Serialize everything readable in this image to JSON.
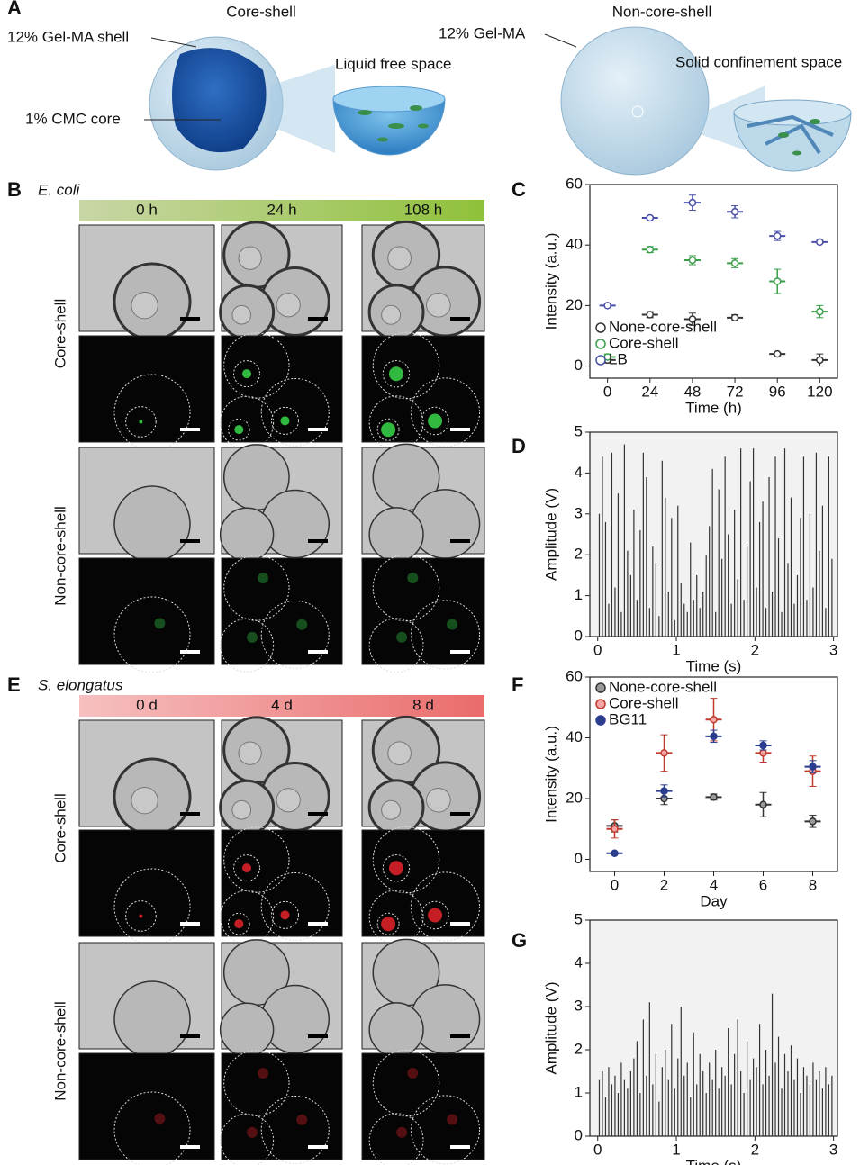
{
  "panel_labels": [
    "A",
    "B",
    "C",
    "D",
    "E",
    "F",
    "G"
  ],
  "panel_a": {
    "core_shell_title": "Core-shell",
    "shell": "12% Gel-MA shell",
    "core": "1% CMC core",
    "liquid": "Liquid free space",
    "non_core_shell_title": "Non-core-shell",
    "gelma": "12% Gel-MA",
    "solid": "Solid confinement space"
  },
  "panel_b": {
    "organism": "E. coli",
    "times": [
      "0 h",
      "24 h",
      "108 h"
    ],
    "rows": [
      "Core-shell",
      "Non-core-shell"
    ]
  },
  "panel_e": {
    "organism": "S. elongatus",
    "times": [
      "0 d",
      "4 d",
      "8 d"
    ],
    "rows": [
      "Core-shell",
      "Non-core-shell"
    ]
  },
  "chart_data": [
    {
      "type": "errorbar",
      "xlabel": "Time (h)",
      "ylabel": "Intensity (a.u.)",
      "x": [
        0,
        24,
        48,
        72,
        96,
        120
      ],
      "xlim": [
        -10,
        130
      ],
      "xticks": [
        0,
        24,
        48,
        72,
        96,
        120
      ],
      "ylim": [
        -4,
        60
      ],
      "yticks": [
        0,
        20,
        40,
        60
      ],
      "legend": "lower left",
      "series": [
        {
          "name": "None-core-shell",
          "color": "#333333",
          "values": [
            2,
            17,
            15.5,
            16,
            4,
            2
          ],
          "errors": [
            1,
            1,
            2,
            1,
            0.5,
            2
          ]
        },
        {
          "name": "Core-shell",
          "color": "#3a9e4a",
          "values": [
            3,
            38.5,
            35,
            34,
            28,
            18
          ],
          "errors": [
            1,
            1,
            1.5,
            1.5,
            4,
            2
          ]
        },
        {
          "name": "LB",
          "color": "#4a4fa8",
          "values": [
            20,
            49,
            54,
            51,
            43,
            41
          ],
          "errors": [
            0.3,
            0.5,
            2.5,
            2,
            1.5,
            0.5
          ]
        }
      ]
    },
    {
      "type": "spike",
      "xlabel": "Time (s)",
      "ylabel": "Amplitude (V)",
      "color": "#333333",
      "background": "#f2f2f2",
      "xlim": [
        -0.1,
        3.05
      ],
      "xticks": [
        0,
        1,
        2,
        3
      ],
      "ylim": [
        0,
        5
      ],
      "yticks": [
        0,
        1,
        2,
        3,
        4,
        5
      ],
      "x": [
        0.02,
        0.06,
        0.1,
        0.14,
        0.18,
        0.22,
        0.26,
        0.3,
        0.34,
        0.38,
        0.42,
        0.46,
        0.5,
        0.54,
        0.58,
        0.62,
        0.66,
        0.7,
        0.74,
        0.78,
        0.82,
        0.86,
        0.9,
        0.94,
        0.98,
        1.02,
        1.06,
        1.1,
        1.14,
        1.18,
        1.22,
        1.26,
        1.3,
        1.34,
        1.38,
        1.42,
        1.46,
        1.5,
        1.54,
        1.58,
        1.62,
        1.66,
        1.7,
        1.74,
        1.78,
        1.82,
        1.86,
        1.9,
        1.94,
        1.98,
        2.02,
        2.06,
        2.1,
        2.14,
        2.18,
        2.22,
        2.26,
        2.3,
        2.34,
        2.38,
        2.42,
        2.46,
        2.5,
        2.54,
        2.58,
        2.62,
        2.66,
        2.7,
        2.74,
        2.78,
        2.82,
        2.86,
        2.9,
        2.94,
        2.98
      ],
      "values": [
        3,
        4.4,
        2.8,
        0.8,
        4.5,
        1.2,
        3.5,
        0.6,
        4.7,
        2.1,
        1.5,
        3.1,
        0.9,
        2.6,
        4.5,
        3.9,
        0.7,
        2.2,
        1.8,
        0.5,
        4.3,
        3.4,
        1.1,
        2.9,
        0.4,
        3.2,
        1.3,
        0.8,
        0.6,
        2.3,
        0.9,
        1.5,
        0.7,
        1.1,
        2.0,
        2.7,
        4.1,
        0.6,
        3.6,
        1.9,
        4.4,
        2.5,
        0.8,
        3.1,
        1.4,
        4.6,
        0.9,
        2.2,
        3.8,
        4.6,
        1.2,
        2.8,
        3.3,
        0.7,
        3.9,
        1.1,
        4.4,
        2.4,
        0.6,
        4.6,
        1.8,
        3.4,
        0.8,
        1.5,
        2.9,
        4.4,
        0.9,
        3.0,
        1.2,
        4.5,
        2.1,
        3.2,
        0.7,
        4.4,
        1.9
      ]
    },
    {
      "type": "errorbar",
      "xlabel": "Day",
      "ylabel": "Intensity (a.u.)",
      "x": [
        0,
        2,
        4,
        6,
        8
      ],
      "xlim": [
        -1,
        9
      ],
      "xticks": [
        0,
        2,
        4,
        6,
        8
      ],
      "ylim": [
        -4,
        60
      ],
      "yticks": [
        0,
        20,
        40,
        60
      ],
      "legend": "upper left",
      "series": [
        {
          "name": "None-core-shell",
          "color": "#333333",
          "fill": "#9a9a9a",
          "values": [
            11,
            20,
            20.5,
            18,
            12.5
          ],
          "errors": [
            2,
            2,
            1,
            4,
            2
          ]
        },
        {
          "name": "Core-shell",
          "color": "#c0392b",
          "fill": "#f4a6a6",
          "values": [
            10,
            35,
            46,
            35,
            29
          ],
          "errors": [
            3,
            6,
            7,
            3,
            5
          ]
        },
        {
          "name": "BG11",
          "color": "#2b3d8f",
          "fill": "#2b3d8f",
          "values": [
            2,
            22.5,
            40.5,
            37.5,
            30.5
          ],
          "errors": [
            0.3,
            2,
            2,
            1.5,
            2
          ]
        }
      ]
    },
    {
      "type": "spike",
      "xlabel": "Time (s)",
      "ylabel": "Amplitude (V)",
      "color": "#333333",
      "background": "#f2f2f2",
      "xlim": [
        -0.1,
        3.05
      ],
      "xticks": [
        0,
        1,
        2,
        3
      ],
      "ylim": [
        0,
        5
      ],
      "yticks": [
        0,
        1,
        2,
        3,
        4,
        5
      ],
      "x": [
        0.02,
        0.06,
        0.1,
        0.14,
        0.18,
        0.22,
        0.26,
        0.3,
        0.34,
        0.38,
        0.42,
        0.46,
        0.5,
        0.54,
        0.58,
        0.62,
        0.66,
        0.7,
        0.74,
        0.78,
        0.82,
        0.86,
        0.9,
        0.94,
        0.98,
        1.02,
        1.06,
        1.1,
        1.14,
        1.18,
        1.22,
        1.26,
        1.3,
        1.34,
        1.38,
        1.42,
        1.46,
        1.5,
        1.54,
        1.58,
        1.62,
        1.66,
        1.7,
        1.74,
        1.78,
        1.82,
        1.86,
        1.9,
        1.94,
        1.98,
        2.02,
        2.06,
        2.1,
        2.14,
        2.18,
        2.22,
        2.26,
        2.3,
        2.34,
        2.38,
        2.42,
        2.46,
        2.5,
        2.54,
        2.58,
        2.62,
        2.66,
        2.7,
        2.74,
        2.78,
        2.82,
        2.86,
        2.9,
        2.94,
        2.98
      ],
      "values": [
        1.3,
        1.5,
        0.9,
        1.6,
        1.2,
        1.4,
        1.0,
        1.7,
        1.3,
        1.1,
        1.5,
        1.8,
        2.2,
        1.0,
        2.7,
        1.4,
        3.1,
        1.2,
        1.9,
        0.8,
        1.6,
        2.0,
        1.3,
        2.6,
        1.1,
        1.8,
        3.0,
        1.4,
        1.7,
        0.9,
        2.4,
        1.2,
        1.9,
        1.5,
        1.0,
        1.7,
        1.3,
        2.0,
        1.1,
        1.6,
        1.4,
        2.5,
        1.2,
        1.9,
        2.7,
        1.5,
        1.0,
        2.2,
        1.3,
        1.8,
        1.6,
        2.6,
        1.2,
        2.0,
        1.4,
        3.3,
        1.7,
        2.3,
        1.1,
        1.9,
        1.5,
        2.1,
        1.3,
        1.8,
        1.0,
        1.6,
        1.4,
        1.2,
        1.7,
        1.3,
        1.5,
        1.1,
        1.6,
        1.2,
        1.4
      ]
    }
  ]
}
